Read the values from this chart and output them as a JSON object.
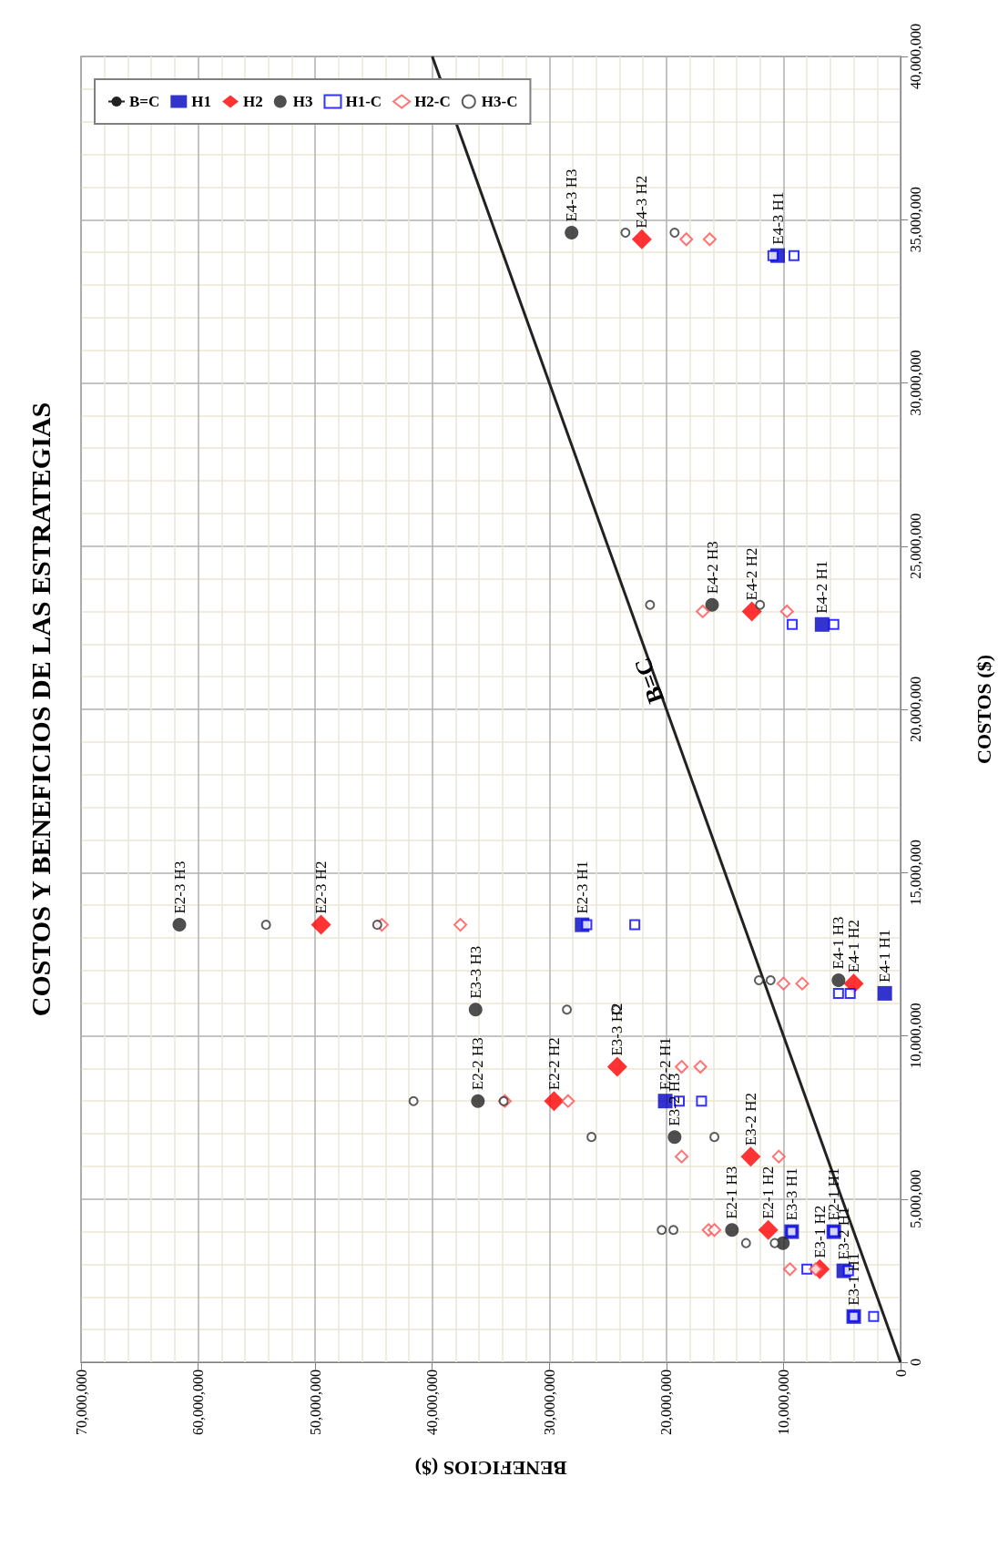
{
  "chart_data": {
    "type": "scatter",
    "title": "COSTOS Y BENEFICIOS DE LAS ESTRATEGIAS",
    "xlabel": "BENEFICIOS ($)",
    "ylabel": "COSTOS ($)",
    "xlim": [
      70000000,
      0
    ],
    "ylim": [
      0,
      40000000
    ],
    "xticks": [
      {
        "value": 70000000,
        "label": "70,000,000"
      },
      {
        "value": 60000000,
        "label": "60,000,000"
      },
      {
        "value": 50000000,
        "label": "50,000,000"
      },
      {
        "value": 40000000,
        "label": "40,000,000"
      },
      {
        "value": 30000000,
        "label": "30,000,000"
      },
      {
        "value": 20000000,
        "label": "20,000,000"
      },
      {
        "value": 10000000,
        "label": "10,000,000"
      },
      0
    ],
    "yticks": [
      0,
      {
        "value": 5000000,
        "label": "5,000,000"
      },
      {
        "value": 10000000,
        "label": "10,000,000"
      },
      {
        "value": 15000000,
        "label": "15,000,000"
      },
      {
        "value": 20000000,
        "label": "20,000,000"
      },
      {
        "value": 25000000,
        "label": "25,000,000"
      },
      {
        "value": 30000000,
        "label": "30,000,000"
      },
      {
        "value": 35000000,
        "label": "35,000,000"
      },
      {
        "value": 40000000,
        "label": "40,000,000"
      }
    ],
    "grid": true,
    "legend": "top left",
    "series": [
      {
        "name": "B=C",
        "type": "line",
        "color": "#222222",
        "marker": "none",
        "line_style": "solid",
        "x": [
          0,
          40000000
        ],
        "values": [
          0,
          40000000
        ]
      },
      {
        "name": "H1",
        "color": "#0000c0",
        "marker": "square",
        "values": [
          33900000,
          22600000,
          13400000,
          8000000,
          4000000,
          4000000,
          2800000,
          1400000,
          11300000
        ],
        "x": [
          10500000,
          6700000,
          27200000,
          20100000,
          9300000,
          5700000,
          4850000,
          4000000,
          1350000
        ]
      },
      {
        "name": "H2",
        "color": "#ff0000",
        "marker": "diamond",
        "values": [
          34400000,
          23000000,
          13400000,
          8000000,
          9050000,
          6300000,
          4050000,
          2850000,
          11600000
        ],
        "x": [
          22100000,
          12700000,
          49500000,
          29600000,
          24200000,
          12800000,
          11300000,
          6900000,
          4000000
        ]
      },
      {
        "name": "H3",
        "color": "#222222",
        "marker": "circle",
        "values": [
          34600000,
          23200000,
          13400000,
          10800000,
          8000000,
          6900000,
          4050000,
          3650000,
          11700000
        ],
        "x": [
          28100000,
          16100000,
          61600000,
          36300000,
          36100000,
          19300000,
          14400000,
          10050000,
          5300000
        ]
      },
      {
        "name": "H1-C",
        "color": "#0000ff",
        "marker": "square",
        "values": [
          33900000,
          33900000,
          22600000,
          22600000,
          13400000,
          13400000,
          8000000,
          8000000,
          4000000,
          4000000,
          2850000,
          2800000,
          1400000,
          1400000,
          11300000,
          11300000
        ],
        "x": [
          10900000,
          9100000,
          9250000,
          5700000,
          26800000,
          22700000,
          18900000,
          17000000,
          9300000,
          5700000,
          8000000,
          4450000,
          4000000,
          2300000,
          5300000,
          4300000
        ]
      },
      {
        "name": "H2-C",
        "color": "#ff5050",
        "marker": "diamond",
        "values": [
          34400000,
          34400000,
          23000000,
          23000000,
          13400000,
          13400000,
          8000000,
          8000000,
          9050000,
          9050000,
          6300000,
          6300000,
          4050000,
          4050000,
          2850000,
          2850000,
          11600000,
          11600000
        ],
        "x": [
          18300000,
          16300000,
          16900000,
          9700000,
          44300000,
          37600000,
          33800000,
          28400000,
          18700000,
          17100000,
          18700000,
          10400000,
          16400000,
          15900000,
          9450000,
          7250000,
          10000000,
          8400000
        ]
      },
      {
        "name": "H3-C",
        "color": "#333333",
        "marker": "circle",
        "values": [
          34600000,
          34600000,
          23200000,
          23200000,
          13400000,
          13400000,
          10800000,
          10800000,
          8000000,
          8000000,
          6900000,
          6900000,
          4050000,
          4050000,
          3650000,
          3650000,
          11700000,
          11700000
        ],
        "x": [
          23500000,
          19300000,
          21400000,
          12000000,
          54200000,
          44700000,
          28500000,
          24300000,
          41600000,
          33900000,
          26400000,
          15900000,
          20400000,
          19400000,
          13200000,
          10750000,
          12100000,
          11100000
        ]
      }
    ],
    "annotations": [
      {
        "text": "B=C",
        "y": 21000000,
        "x": 20500000
      },
      {
        "text": "E4-3 H3",
        "y": 34600000,
        "x": 28100000
      },
      {
        "text": "E4-3 H2",
        "y": 34400000,
        "x": 22100000
      },
      {
        "text": "E4-3 H1",
        "y": 33900000,
        "x": 10500000
      },
      {
        "text": "E4-2 H3",
        "y": 23200000,
        "x": 16100000
      },
      {
        "text": "E4-2 H2",
        "y": 23000000,
        "x": 12700000
      },
      {
        "text": "E4-2 H1",
        "y": 22600000,
        "x": 6700000
      },
      {
        "text": "E2-3 H3",
        "y": 13400000,
        "x": 61600000
      },
      {
        "text": "E2-3 H2",
        "y": 13400000,
        "x": 49500000
      },
      {
        "text": "E2-3 H1",
        "y": 13400000,
        "x": 27200000
      },
      {
        "text": "E4-1 H3",
        "y": 11700000,
        "x": 5300000
      },
      {
        "text": "E4-1 H2",
        "y": 11600000,
        "x": 4000000
      },
      {
        "text": "E4-1 H1",
        "y": 11300000,
        "x": 1350000
      },
      {
        "text": "E3-3 H3",
        "y": 10800000,
        "x": 36300000
      },
      {
        "text": "E2-2 H3",
        "y": 8000000,
        "x": 36100000
      },
      {
        "text": "E2-2 H2",
        "y": 8000000,
        "x": 29600000
      },
      {
        "text": "E3-3 H2",
        "y": 9050000,
        "x": 24200000
      },
      {
        "text": "E2-2 H1",
        "y": 8000000,
        "x": 20100000
      },
      {
        "text": "E3-2 H3",
        "y": 6900000,
        "x": 19300000
      },
      {
        "text": "E3-2 H2",
        "y": 6300000,
        "x": 12800000
      },
      {
        "text": "E2-1 H3",
        "y": 4050000,
        "x": 14400000
      },
      {
        "text": "E2-1 H2",
        "y": 4050000,
        "x": 11300000
      },
      {
        "text": "E3-3 H1",
        "y": 4000000,
        "x": 9300000
      },
      {
        "text": "E3-1 H2",
        "y": 2850000,
        "x": 6900000
      },
      {
        "text": "E2-1 H1",
        "y": 4000000,
        "x": 5700000
      },
      {
        "text": "E3-2 H1",
        "y": 2800000,
        "x": 4850000
      },
      {
        "text": "E3-1 H1",
        "y": 1400000,
        "x": 4000000
      }
    ]
  }
}
